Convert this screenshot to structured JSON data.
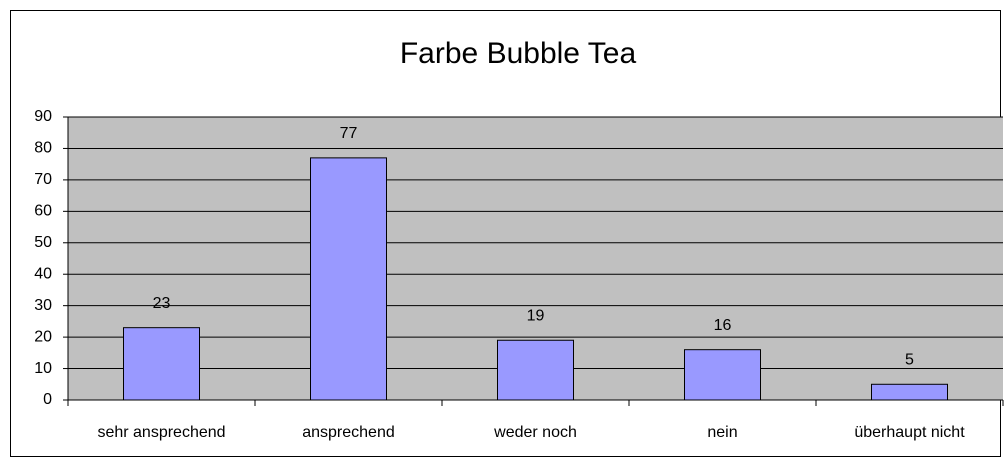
{
  "chart_data": {
    "type": "bar",
    "title": "Farbe Bubble Tea",
    "categories": [
      "sehr ansprechend",
      "ansprechend",
      "weder noch",
      "nein",
      "überhaupt nicht"
    ],
    "values": [
      23,
      77,
      19,
      16,
      5
    ],
    "color": "#9999ff",
    "ylim": [
      0,
      90
    ],
    "yticks": [
      0,
      10,
      20,
      30,
      40,
      50,
      60,
      70,
      80,
      90
    ],
    "grid": true
  }
}
